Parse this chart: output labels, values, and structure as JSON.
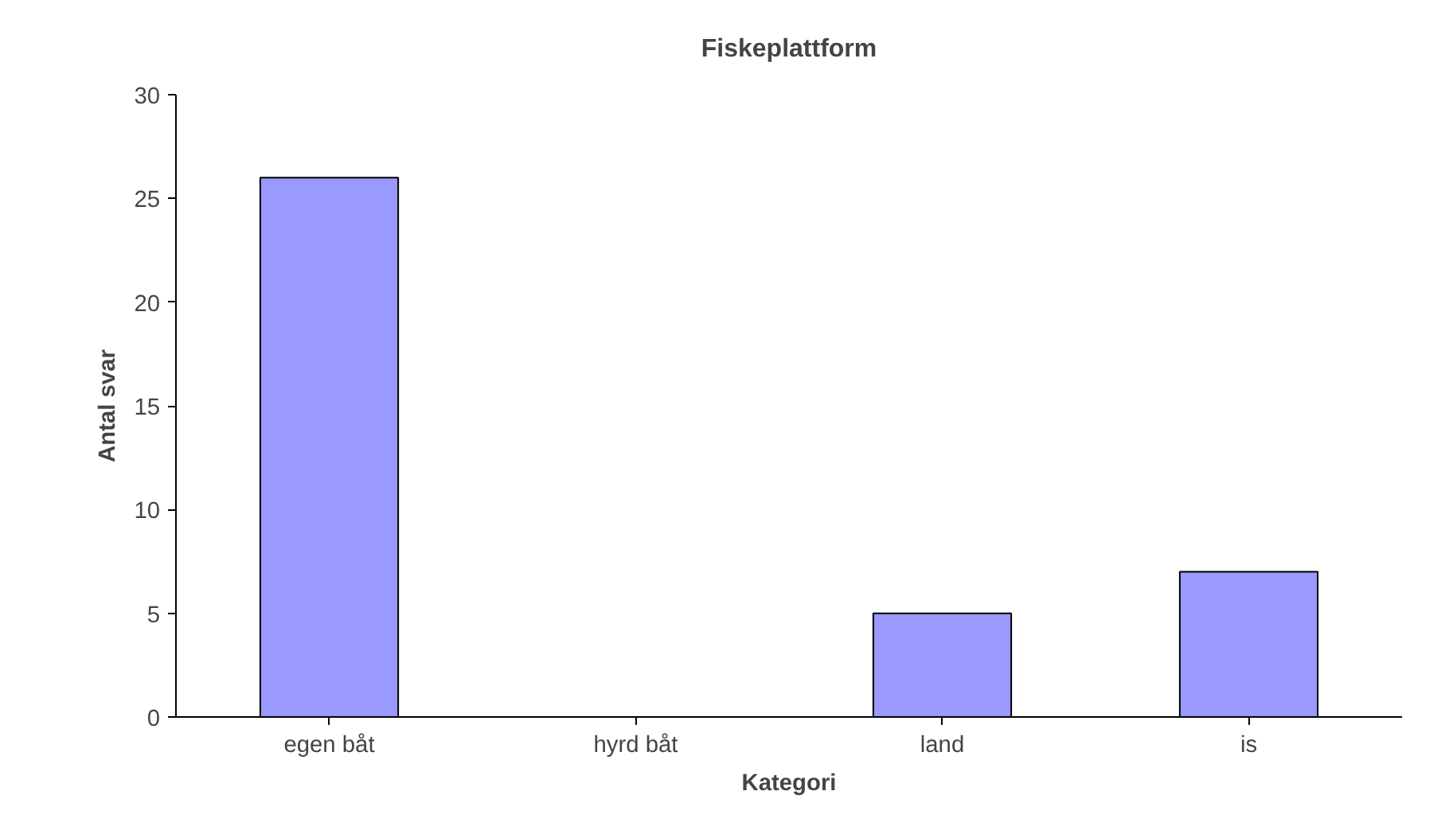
{
  "chart_data": {
    "type": "bar",
    "title": "Fiskeplattform",
    "xlabel": "Kategori",
    "ylabel": "Antal svar",
    "categories": [
      "egen båt",
      "hyrd båt",
      "land",
      "is"
    ],
    "values": [
      26,
      0,
      5,
      7
    ],
    "color": "#9999ff",
    "ylim": [
      0,
      30
    ],
    "yticks": [
      0,
      5,
      10,
      15,
      20,
      25,
      30
    ],
    "grid": false
  }
}
